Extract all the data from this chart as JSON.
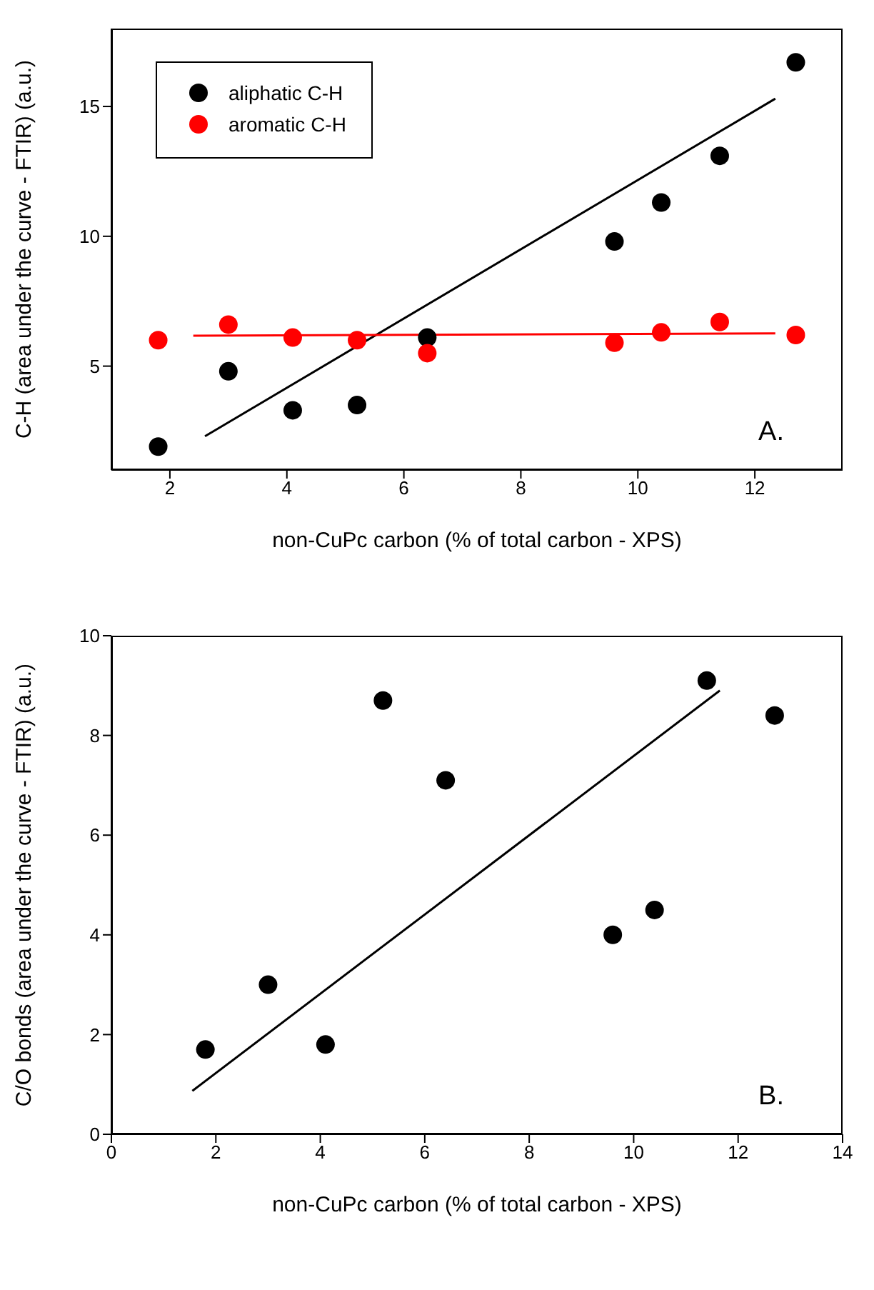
{
  "chart_data": [
    {
      "type": "scatter",
      "xlabel": "non-CuPc carbon (% of total carbon - XPS)",
      "ylabel": "C-H (area under the curve - FTIR)  (a.u.)",
      "xlim": [
        1,
        13.5
      ],
      "xticks": [
        2,
        4,
        6,
        8,
        10,
        12
      ],
      "ylim": [
        1,
        18
      ],
      "yticks": [
        5,
        10,
        15
      ],
      "legend": "top left",
      "grid": false,
      "annotations": [
        "A."
      ],
      "x": [
        1.8,
        3.0,
        4.1,
        5.2,
        6.4,
        9.6,
        10.4,
        11.4,
        12.7
      ],
      "series": [
        {
          "name": "aliphatic C-H",
          "color": "#000000",
          "marker": "circle",
          "values": [
            1.9,
            4.8,
            3.3,
            3.5,
            6.1,
            9.8,
            11.3,
            13.1,
            16.7
          ]
        },
        {
          "name": "aromatic C-H",
          "color": "#ff0000",
          "marker": "circle",
          "values": [
            6.0,
            6.6,
            6.1,
            6.0,
            5.5,
            5.9,
            6.3,
            6.7,
            6.2
          ]
        },
        {
          "type": "line",
          "color": "#000000",
          "x": [
            2.6,
            12.35
          ],
          "values": [
            2.3,
            15.3
          ]
        },
        {
          "type": "line",
          "color": "#ff0000",
          "x": [
            2.4,
            12.35
          ],
          "values": [
            6.17,
            6.26
          ]
        }
      ]
    },
    {
      "type": "scatter",
      "xlabel": "non-CuPc carbon (% of total carbon - XPS)",
      "ylabel": "C/O bonds (area under the curve - FTIR) (a.u.)",
      "xlim": [
        0,
        14
      ],
      "xticks": [
        0,
        2,
        4,
        6,
        8,
        10,
        12,
        14
      ],
      "ylim": [
        0,
        10
      ],
      "yticks": [
        0,
        2,
        4,
        6,
        8,
        10
      ],
      "grid": false,
      "annotations": [
        "B."
      ],
      "x": [
        1.8,
        3.0,
        4.1,
        5.2,
        6.4,
        9.6,
        10.4,
        11.4,
        12.7
      ],
      "series": [
        {
          "color": "#000000",
          "marker": "circle",
          "values": [
            1.7,
            3.0,
            1.8,
            8.7,
            7.1,
            4.0,
            4.5,
            9.1,
            8.4
          ]
        },
        {
          "type": "line",
          "color": "#000000",
          "x": [
            1.55,
            11.65
          ],
          "values": [
            0.87,
            8.9
          ]
        }
      ]
    }
  ]
}
